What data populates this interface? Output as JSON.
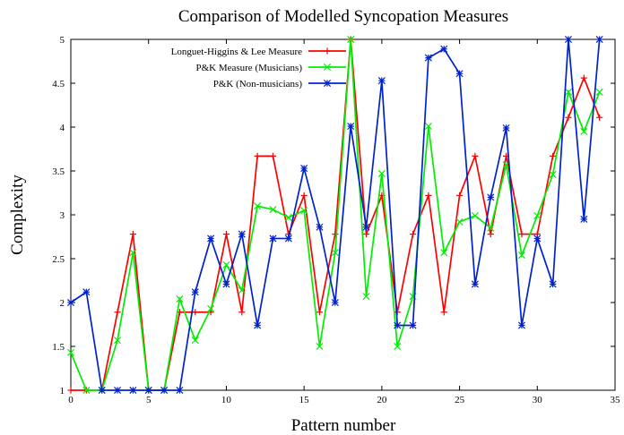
{
  "chart_data": {
    "type": "line",
    "title": "Comparison of Modelled Syncopation Measures",
    "xlabel": "Pattern number",
    "ylabel": "Complexity",
    "xlim": [
      0,
      35
    ],
    "ylim": [
      1,
      5
    ],
    "xticks": [
      0,
      5,
      10,
      15,
      20,
      25,
      30,
      35
    ],
    "xtick_labels": [
      "0",
      "5",
      "10",
      "15",
      "20",
      "25",
      "30",
      "35"
    ],
    "yticks": [
      1,
      1.5,
      2,
      2.5,
      3,
      3.5,
      4,
      4.5,
      5
    ],
    "ytick_labels": [
      "1",
      "1.5",
      "2",
      "2.5",
      "3",
      "3.5",
      "4",
      "4.5",
      "5"
    ],
    "grid": false,
    "legend_position": "top-center",
    "x": [
      0,
      1,
      2,
      3,
      4,
      5,
      6,
      7,
      8,
      9,
      10,
      11,
      12,
      13,
      14,
      15,
      16,
      17,
      18,
      19,
      20,
      21,
      22,
      23,
      24,
      25,
      26,
      27,
      28,
      29,
      30,
      31,
      32,
      33,
      34
    ],
    "series": [
      {
        "name": "Longuet-Higgins & Lee Measure",
        "color": "#ff0000",
        "marker": "plus",
        "values": [
          1.0,
          1.0,
          1.0,
          1.89,
          2.78,
          1.0,
          1.0,
          1.89,
          1.89,
          1.89,
          2.78,
          1.89,
          3.67,
          3.67,
          2.78,
          3.22,
          1.89,
          2.78,
          5.0,
          2.78,
          3.22,
          1.89,
          2.78,
          3.22,
          1.89,
          3.22,
          3.67,
          2.78,
          3.67,
          2.78,
          2.78,
          3.67,
          4.11,
          4.56,
          4.11
        ]
      },
      {
        "name": "P&K Measure (Musicians)",
        "color": "#00ee00",
        "marker": "cross",
        "values": [
          1.43,
          1.0,
          1.0,
          1.57,
          2.57,
          1.0,
          1.0,
          2.04,
          1.57,
          1.93,
          2.43,
          2.14,
          3.1,
          3.06,
          2.97,
          3.05,
          1.5,
          2.57,
          5.0,
          2.07,
          3.47,
          1.5,
          2.07,
          4.01,
          2.57,
          2.92,
          2.99,
          2.85,
          3.57,
          2.54,
          2.99,
          3.46,
          4.4,
          3.95,
          4.4
        ]
      },
      {
        "name": "P&K (Non-musicians)",
        "color": "#0022cc",
        "marker": "asterisk",
        "values": [
          2.0,
          2.12,
          1.0,
          1.0,
          1.0,
          1.0,
          1.0,
          1.0,
          2.12,
          2.73,
          2.21,
          2.78,
          1.74,
          2.73,
          2.73,
          3.53,
          2.86,
          2.0,
          4.01,
          2.86,
          4.53,
          1.74,
          1.74,
          4.79,
          4.89,
          4.61,
          2.21,
          3.2,
          3.99,
          1.74,
          2.73,
          2.21,
          5.0,
          2.95,
          5.0
        ]
      }
    ]
  }
}
